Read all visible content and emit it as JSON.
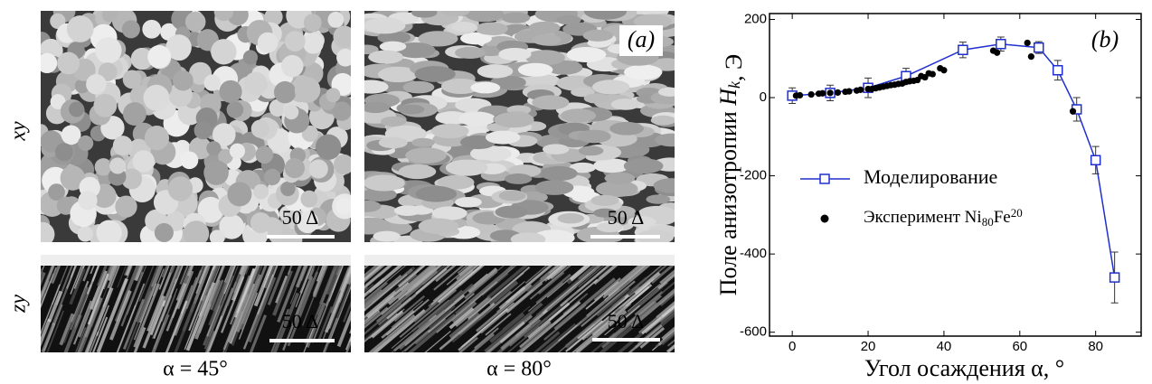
{
  "panel_a": {
    "label": "(a)",
    "row_labels": [
      "xy",
      "zy"
    ],
    "scale_bar": "50 Δ",
    "captions": [
      "α = 45°",
      "α = 80°"
    ]
  },
  "chart_data": {
    "type": "line",
    "panel_label": "(b)",
    "x_label": "Угол осаждения α, °",
    "y_label": "Поле анизотропии Hk, Э",
    "xlim": [
      -6,
      92
    ],
    "ylim": [
      -610,
      215
    ],
    "xticks": [
      0,
      20,
      40,
      60,
      80
    ],
    "yticks": [
      -600,
      -400,
      -200,
      0,
      200
    ],
    "series": [
      {
        "name": "Моделирование",
        "color": "#1f2fd0",
        "marker": "square",
        "x": [
          0,
          10,
          20,
          30,
          45,
          55,
          65,
          70,
          75,
          80,
          85
        ],
        "values": [
          5,
          12,
          25,
          55,
          122,
          137,
          128,
          70,
          -30,
          -160,
          -460
        ],
        "errors": [
          20,
          20,
          25,
          20,
          20,
          18,
          15,
          25,
          30,
          35,
          65
        ]
      },
      {
        "name": "Эксперимент Ni80Fe20",
        "color": "#000000",
        "marker": "dot",
        "x": [
          1,
          2,
          5,
          7,
          8,
          10,
          12,
          14,
          15,
          17,
          18,
          20,
          21,
          22,
          23,
          24,
          25,
          26,
          27,
          28,
          29,
          30,
          31,
          32,
          33,
          34,
          35,
          36,
          37,
          39,
          40,
          53,
          54,
          62,
          63,
          74
        ],
        "values": [
          5,
          6,
          8,
          10,
          11,
          12,
          13,
          15,
          16,
          18,
          20,
          22,
          22,
          24,
          26,
          28,
          30,
          32,
          33,
          35,
          36,
          40,
          42,
          43,
          45,
          55,
          52,
          62,
          60,
          75,
          70,
          120,
          115,
          140,
          105,
          -35
        ]
      }
    ]
  }
}
